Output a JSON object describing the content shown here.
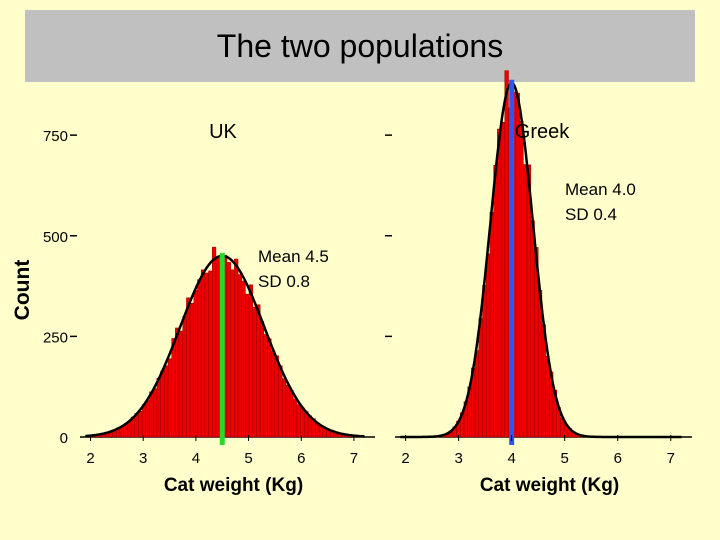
{
  "slide": {
    "title": "The two populations"
  },
  "chart_data": [
    {
      "type": "bar",
      "title": "UK",
      "xlabel": "Cat weight (Kg)",
      "ylabel": "Count",
      "xlim": [
        1.8,
        7.4
      ],
      "ylim": [
        0,
        800
      ],
      "xticks": [
        "2",
        "3",
        "4",
        "5",
        "6",
        "7"
      ],
      "yticks": [
        "0",
        "250",
        "500",
        "750"
      ],
      "mean": 4.5,
      "sd": 0.8,
      "peak_count": 450,
      "annotation": [
        "Mean 4.5",
        "SD 0.8"
      ],
      "mean_line_color": "#22dd22"
    },
    {
      "type": "bar",
      "title": "Greek",
      "xlabel": "Cat weight (Kg)",
      "ylabel": "",
      "xlim": [
        1.8,
        7.4
      ],
      "ylim": [
        0,
        800
      ],
      "xticks": [
        "2",
        "3",
        "4",
        "5",
        "6",
        "7"
      ],
      "mean": 4.0,
      "sd": 0.4,
      "peak_count": 880,
      "annotation": [
        "Mean 4.0",
        "SD 0.4"
      ],
      "mean_line_color": "#3355ee"
    }
  ],
  "colors": {
    "bar": "#ee0000",
    "curve": "#000000",
    "background": "#ffffcc",
    "title_bar": "#c0c0c0"
  }
}
